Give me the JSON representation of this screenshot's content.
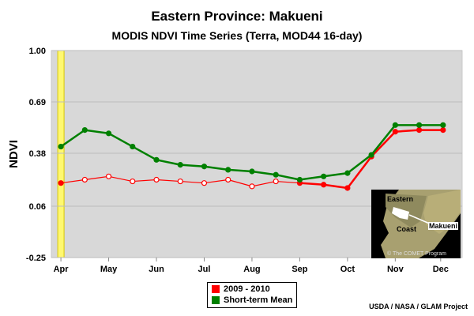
{
  "title": "Eastern Province: Makueni",
  "subtitle": "MODIS NDVI Time Series (Terra, MOD44 16-day)",
  "ylabel": "NDVI",
  "credit": "USDA / NASA / GLAM Project",
  "inset": {
    "labels": {
      "eastern": "Eastern",
      "coast": "Coast",
      "makueni": "Makueni"
    },
    "credit": "© The COMET Program"
  },
  "legend": [
    {
      "label": "2009 - 2010",
      "color": "#ff0000"
    },
    {
      "label": "Short-term Mean",
      "color": "#008000"
    }
  ],
  "chart_data": {
    "type": "line",
    "title": "Eastern Province: Makueni",
    "subtitle": "MODIS NDVI Time Series (Terra, MOD44 16-day)",
    "xlabel": "",
    "ylabel": "NDVI",
    "ylim": [
      -0.25,
      1.0
    ],
    "yticks": [
      "1.00",
      "0.69",
      "0.38",
      "0.06",
      "-0.25"
    ],
    "ytick_values": [
      1.0,
      0.69,
      0.38,
      0.06,
      -0.25
    ],
    "xticks": [
      "Apr",
      "May",
      "Jun",
      "Jul",
      "Aug",
      "Sep",
      "Oct",
      "Nov",
      "Dec"
    ],
    "xtick_index": [
      0,
      2,
      4,
      6,
      8,
      10,
      12,
      14,
      15.9
    ],
    "x": [
      0,
      1,
      2,
      3,
      4,
      5,
      6,
      7,
      8,
      9,
      10,
      11,
      12,
      13,
      14,
      15,
      16
    ],
    "highlight_x": 0,
    "grid": true,
    "legend_position": "bottom-center",
    "series": [
      {
        "name": "2009 - 2010",
        "color": "#ff0000",
        "values": [
          0.2,
          0.22,
          0.24,
          0.21,
          0.22,
          0.21,
          0.2,
          0.22,
          0.18,
          0.21,
          0.2,
          0.19,
          0.17,
          0.36,
          0.51,
          0.52,
          0.52
        ],
        "solid_from": 10
      },
      {
        "name": "Short-term Mean",
        "color": "#008000",
        "values": [
          0.42,
          0.52,
          0.5,
          0.42,
          0.34,
          0.31,
          0.3,
          0.28,
          0.27,
          0.25,
          0.22,
          0.24,
          0.26,
          0.37,
          0.55,
          0.55,
          0.55
        ]
      }
    ]
  }
}
